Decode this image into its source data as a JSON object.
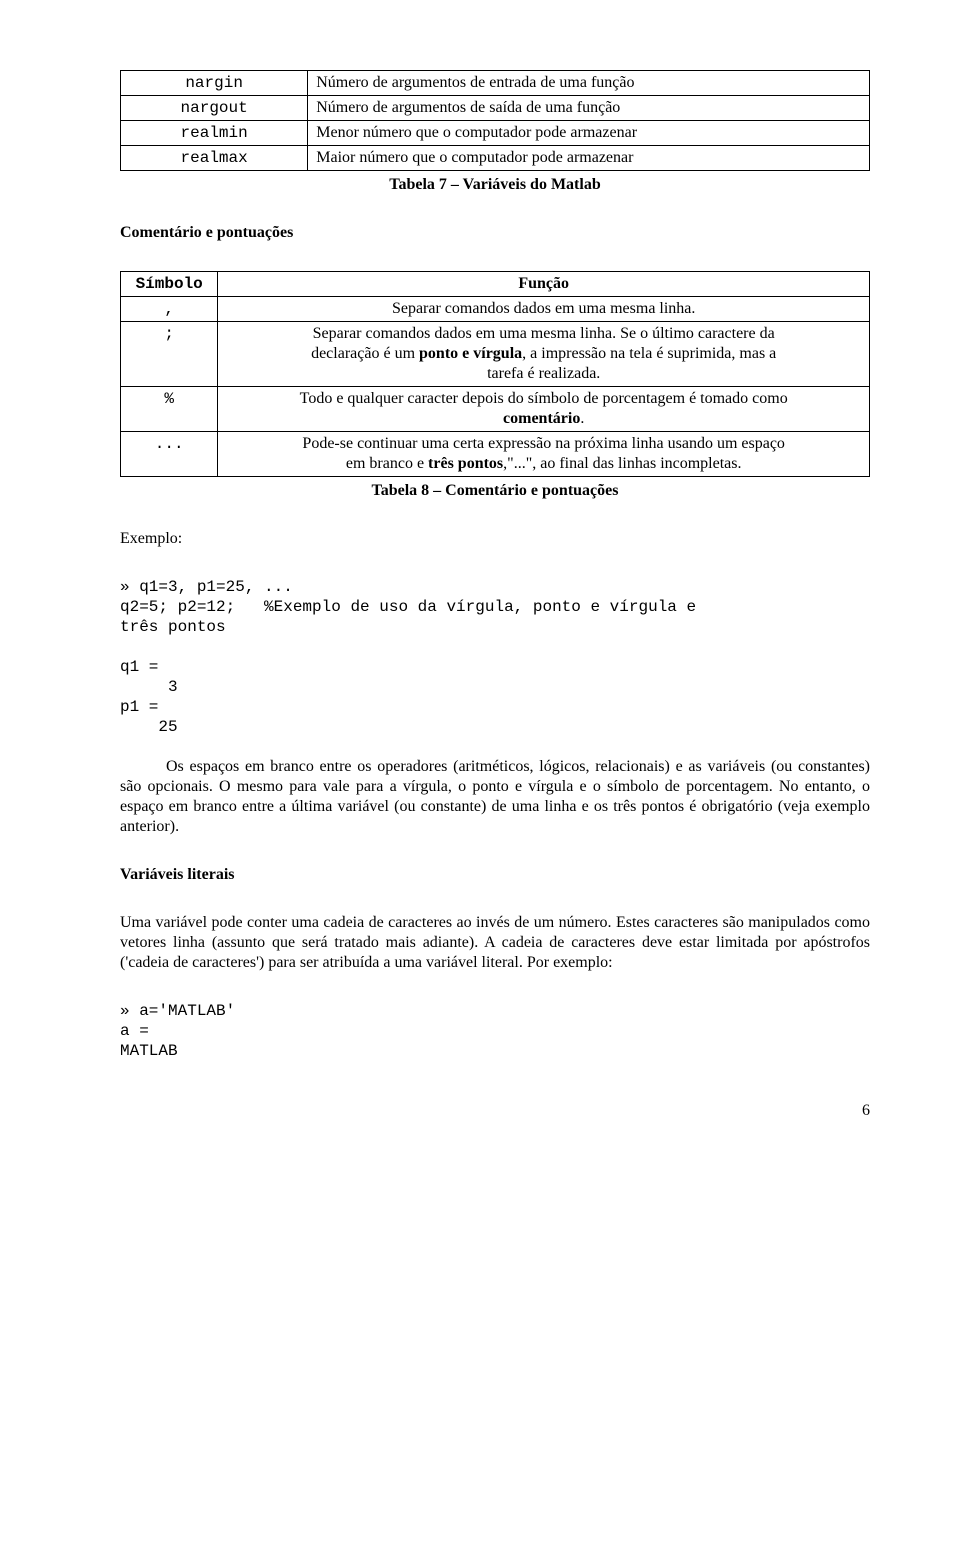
{
  "table1": {
    "rows": [
      [
        "nargin",
        "Número de argumentos de entrada de uma função"
      ],
      [
        "nargout",
        "Número de argumentos de saída de uma função"
      ],
      [
        "realmin",
        "Menor número que o computador pode armazenar"
      ],
      [
        "realmax",
        "Maior número que o computador pode armazenar"
      ]
    ],
    "caption": "Tabela 7 – Variáveis do Matlab"
  },
  "section1": "Comentário e pontuações",
  "table2": {
    "header": [
      "Símbolo",
      "Função"
    ],
    "rows": [
      [
        ",",
        "Separar comandos dados em uma mesma linha."
      ],
      [
        ";",
        "Separar comandos dados em uma mesma linha. Se o último caractere da declaração é um ponto e vírgula, a impressão na tela é suprimida, mas a tarefa é realizada."
      ],
      [
        "%",
        "Todo e qualquer caracter depois do símbolo de porcentagem é tomado como comentário."
      ],
      [
        "...",
        "Pode-se continuar uma certa expressão na próxima linha usando um espaço em branco e três pontos,\"...\", ao final das linhas incompletas."
      ]
    ],
    "caption": "Tabela 8 – Comentário e pontuações"
  },
  "example_label": "Exemplo:",
  "code1": "» q1=3, p1=25, ...\nq2=5; p2=12;   %Exemplo de uso da vírgula, ponto e vírgula e\ntrês pontos\n\nq1 =\n     3\np1 =\n    25",
  "para1": "Os espaços em branco entre os operadores (aritméticos, lógicos, relacionais) e as variáveis (ou constantes) são opcionais. O mesmo para vale para a vírgula, o ponto e vírgula e o símbolo de porcentagem. No entanto, o espaço em branco entre a última variável (ou constante) de uma linha e os três pontos é obrigatório (veja exemplo anterior).",
  "section2": "Variáveis literais",
  "para2": "Uma variável pode conter uma cadeia de caracteres ao invés de um número. Estes caracteres são manipulados como vetores linha (assunto que será tratado mais adiante). A cadeia de caracteres deve estar limitada por apóstrofos ('cadeia de caracteres') para ser atribuída a uma variável literal. Por exemplo:",
  "code2": "» a='MATLAB'\na =\nMATLAB",
  "pagenum": "6"
}
